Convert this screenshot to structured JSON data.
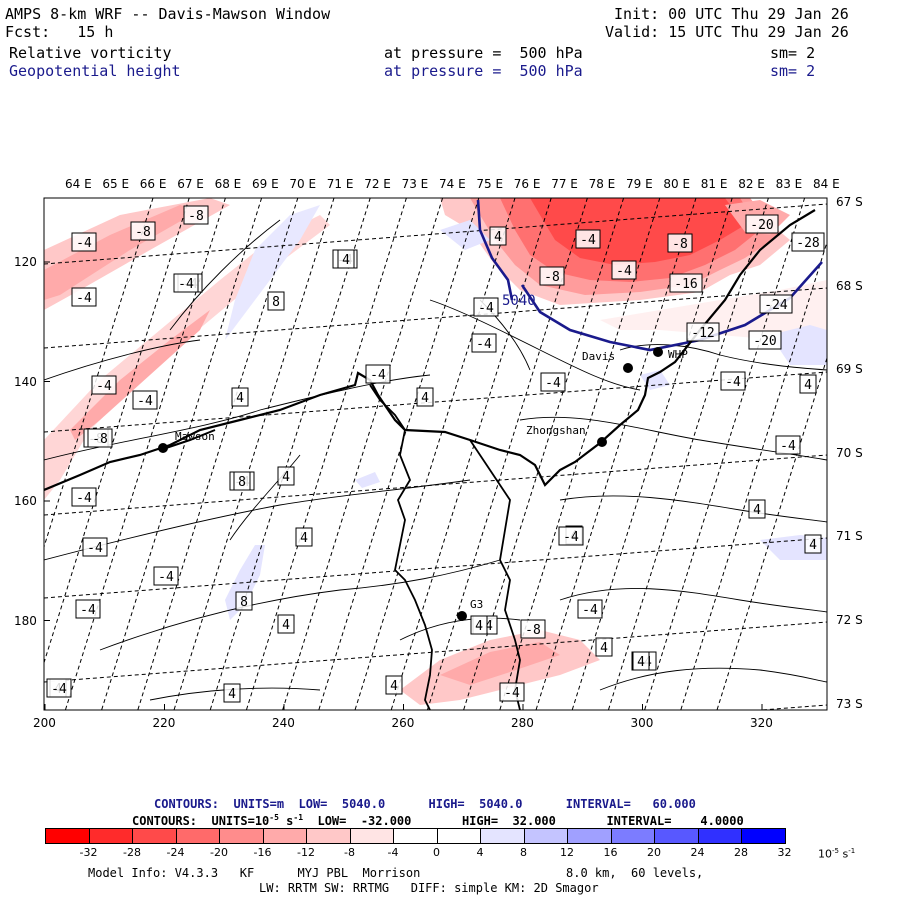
{
  "header": {
    "title": "AMPS 8-km WRF -- Davis-Mawson Window",
    "init": "Init: 00 UTC Thu 29 Jan 26",
    "fcst": "Fcst:   15 h",
    "valid": "Valid: 15 UTC Thu 29 Jan 26",
    "field1_name": "Relative vorticity",
    "field1_level": "at pressure =  500 hPa",
    "field1_sm": "sm= 2",
    "field2_name": "Geopotential height",
    "field2_level": "at pressure =  500 hPa",
    "field2_sm": "sm= 2"
  },
  "lon_labels": [
    "64 E",
    "65 E",
    "66 E",
    "67 E",
    "68 E",
    "69 E",
    "70 E",
    "71 E",
    "72 E",
    "73 E",
    "74 E",
    "75 E",
    "76 E",
    "77 E",
    "78 E",
    "79 E",
    "80 E",
    "81 E",
    "82 E",
    "83 E",
    "84 E"
  ],
  "lat_labels": [
    "67 S",
    "68 S",
    "69 S",
    "70 S",
    "71 S",
    "72 S",
    "73 S"
  ],
  "x_ticks": [
    "200",
    "220",
    "240",
    "260",
    "280",
    "300",
    "320"
  ],
  "y_ticks": [
    "120",
    "140",
    "160",
    "180"
  ],
  "stations": [
    {
      "name": "Mawson"
    },
    {
      "name": "Davis"
    },
    {
      "name": "WHP"
    },
    {
      "name": "Zhongshan"
    },
    {
      "name": "G3"
    }
  ],
  "contour_labels": [
    "-4",
    "-8",
    "-8",
    "-4",
    "-4",
    "-4",
    "8",
    "-4",
    "4",
    "-4",
    "-4",
    "-4",
    "-8",
    "-4",
    "4",
    "-4",
    "4",
    "4",
    "-4",
    "-4",
    "-4",
    "8",
    "4",
    "4",
    "4",
    "4",
    "4",
    "-4",
    "-8",
    "-4",
    "-8",
    "-4",
    "-16",
    "-20",
    "-28",
    "-24",
    "-12",
    "-20",
    "-4",
    "-4",
    "4",
    "-4",
    "-4",
    "4",
    "-4",
    "4",
    "4",
    "-4",
    "-8",
    "-4",
    "-4",
    "4",
    "-4",
    "4",
    "4",
    "-8",
    "-4",
    "4",
    "8"
  ],
  "height_label": "5040",
  "legend": {
    "line1": "CONTOURS:  UNITS=m  LOW=  5040.0      HIGH=  5040.0      INTERVAL=   60.000",
    "line2_pre": "CONTOURS:  UNITS=10",
    "line2_exp": "-5",
    "line2_post": " s",
    "line2_exp2": "-1",
    "line2_rest": "  LOW=  -32.000       HIGH=  32.000       INTERVAL=    4.0000",
    "units_pre": "10",
    "units_exp": "-5",
    "units_s": " s",
    "units_exp2": "-1"
  },
  "colorbar": {
    "labels": [
      "-32",
      "-28",
      "-24",
      "-20",
      "-16",
      "-12",
      "-8",
      "-4",
      "0",
      "4",
      "8",
      "12",
      "16",
      "20",
      "24",
      "28",
      "32"
    ],
    "colors": [
      "#ff0000",
      "#ff2b2b",
      "#ff4a4a",
      "#ff6a6a",
      "#ff8c8c",
      "#ffaaaa",
      "#ffc8c8",
      "#ffe4e4",
      "#ffffff",
      "#ffffff",
      "#e4e4ff",
      "#c4c4ff",
      "#a0a0ff",
      "#7c7cff",
      "#5858ff",
      "#3030ff",
      "#0000ff"
    ]
  },
  "footer": {
    "line1_left": "Model Info: V4.3.3   KF      MYJ PBL  Morrison",
    "line1_right": "8.0 km,  60 levels,",
    "line2": "LW: RRTM SW: RRTMG   DIFF: simple KM: 2D Smagor"
  }
}
